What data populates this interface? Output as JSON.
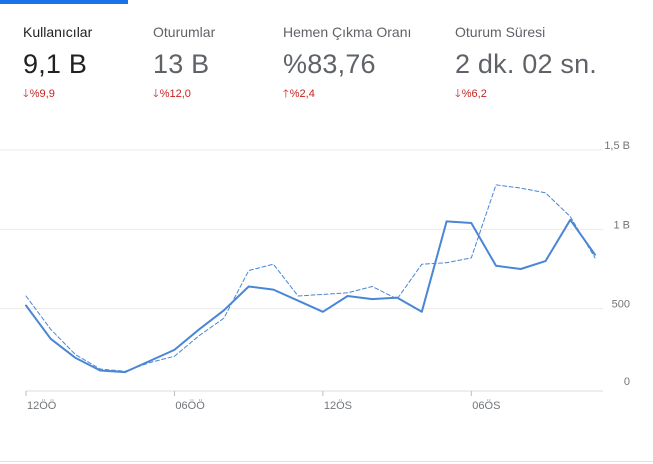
{
  "metrics": [
    {
      "label": "Kullanıcılar",
      "value": "9,1 B",
      "change": "%9,9",
      "direction": "down",
      "active": true
    },
    {
      "label": "Oturumlar",
      "value": "13 B",
      "change": "%12,0",
      "direction": "down",
      "active": false
    },
    {
      "label": "Hemen Çıkma Oranı",
      "value": "%83,76",
      "change": "%2,4",
      "direction": "up",
      "active": false
    },
    {
      "label": "Oturum Süresi",
      "value": "2 dk. 02 sn.",
      "change": "%6,2",
      "direction": "down",
      "active": false
    }
  ],
  "colors": {
    "accent": "#1a73e8",
    "line": "#4a86d6",
    "negative": "#c5221f"
  },
  "icons": {
    "down": "arrow-down-icon",
    "up": "arrow-up-icon"
  },
  "chart_data": {
    "type": "line",
    "x_ticks": [
      "12ÖÖ",
      "06ÖÖ",
      "12ÖS",
      "06ÖS"
    ],
    "y_ticks": [
      "0",
      "500",
      "1 B",
      "1,5 B"
    ],
    "ylim": [
      0,
      1500
    ],
    "grid": true,
    "series": [
      {
        "style": "solid",
        "values": [
          520,
          310,
          190,
          110,
          100,
          170,
          240,
          370,
          490,
          640,
          620,
          550,
          480,
          580,
          560,
          570,
          480,
          1050,
          1040,
          770,
          750,
          800,
          1060,
          840
        ]
      },
      {
        "style": "dashed",
        "values": [
          580,
          370,
          210,
          120,
          105,
          160,
          200,
          330,
          440,
          740,
          780,
          580,
          590,
          600,
          640,
          560,
          780,
          790,
          820,
          1280,
          1260,
          1230,
          1080,
          820
        ]
      }
    ]
  }
}
